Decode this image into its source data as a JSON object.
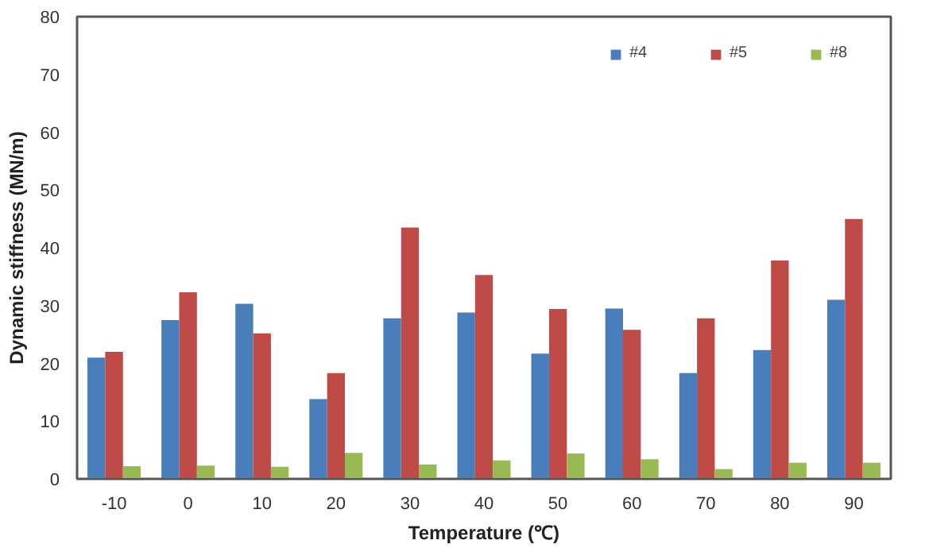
{
  "chart_data": {
    "type": "bar",
    "xlabel": "Temperature (℃)",
    "ylabel": "Dynamic stiffness (MN/m)",
    "categories": [
      "-10",
      "0",
      "10",
      "20",
      "30",
      "40",
      "50",
      "60",
      "70",
      "80",
      "90"
    ],
    "series": [
      {
        "name": "#4",
        "color": "#4a7ebb",
        "values": [
          21,
          27.5,
          30.3,
          13.8,
          27.8,
          28.8,
          21.7,
          29.5,
          18.3,
          22.3,
          31
        ]
      },
      {
        "name": "#5",
        "color": "#be4b48",
        "values": [
          22,
          32.3,
          25.2,
          18.3,
          43.5,
          35.3,
          29.4,
          25.8,
          27.8,
          37.8,
          45
        ]
      },
      {
        "name": "#8",
        "color": "#98b954",
        "values": [
          2.2,
          2.3,
          2.1,
          4.5,
          2.5,
          3.2,
          4.4,
          3.4,
          1.7,
          2.8,
          2.8
        ]
      }
    ],
    "ylim": [
      0,
      80
    ],
    "yticks": [
      0,
      10,
      20,
      30,
      40,
      50,
      60,
      70,
      80
    ],
    "grid": false,
    "legend": "top right"
  }
}
